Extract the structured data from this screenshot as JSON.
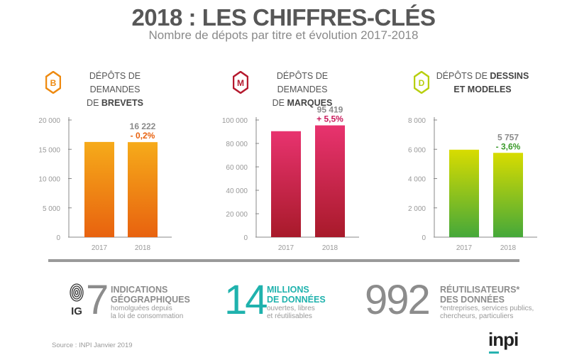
{
  "title": "2018 : LES CHIFFRES-CLÉS",
  "subtitle": "Nombre de dépots par titre et évolution 2017-2018",
  "panels": [
    {
      "letter": "B",
      "line1": "DÉPÔTS DE DEMANDES",
      "line2_pre": "DE ",
      "line2_bold": "BREVETS",
      "color": "#ee8a10"
    },
    {
      "letter": "M",
      "line1": "DÉPÔTS DE DEMANDES",
      "line2_pre": "DE ",
      "line2_bold": "MARQUES",
      "color": "#b5192e"
    },
    {
      "letter": "D",
      "line1_pre": "DÉPÔTS DE ",
      "line1_bold": "DESSINS",
      "line2_bold": "ET MODELES",
      "color": "#b8cf10"
    }
  ],
  "chart_data": [
    {
      "type": "bar",
      "name": "brevets",
      "categories": [
        "2017",
        "2018"
      ],
      "values": [
        16254,
        16222
      ],
      "ylim": [
        0,
        20000
      ],
      "yticks": [
        "0",
        "5 000",
        "10 000",
        "15 000",
        "20 000"
      ],
      "yticks_values": [
        0,
        5000,
        10000,
        15000,
        20000
      ],
      "value_label": "16 222",
      "change_label": "- 0,2%",
      "colors": [
        "#f6ab1a",
        "#e8620f"
      ],
      "change_color": "#e8620f"
    },
    {
      "type": "bar",
      "name": "marques",
      "categories": [
        "2017",
        "2018"
      ],
      "values": [
        90444,
        95419
      ],
      "ylim": [
        0,
        100000
      ],
      "yticks": [
        "0",
        "20 000",
        "40 000",
        "60 000",
        "80 000",
        "100 000"
      ],
      "yticks_values": [
        0,
        20000,
        40000,
        60000,
        80000,
        100000
      ],
      "value_label": "95 419",
      "change_label": "+ 5,5%",
      "colors": [
        "#e8336f",
        "#a81a2a"
      ],
      "change_color": "#c8195a"
    },
    {
      "type": "bar",
      "name": "dessins",
      "categories": [
        "2017",
        "2018"
      ],
      "values": [
        5972,
        5757
      ],
      "ylim": [
        0,
        8000
      ],
      "yticks": [
        "0",
        "2 000",
        "4 000",
        "6 000",
        "8 000"
      ],
      "yticks_values": [
        0,
        2000,
        4000,
        6000,
        8000
      ],
      "value_label": "5 757",
      "change_label": "- 3,6%",
      "colors": [
        "#d8dc00",
        "#45a83a"
      ],
      "change_color": "#3a9a2a"
    }
  ],
  "stats": {
    "ig": {
      "icon_label": "IG",
      "number": "7",
      "bold1": "INDICATIONS",
      "bold2": "GÉOGRAPHIQUES",
      "small1": "homolguées depuis",
      "small2": "la loi de consommation"
    },
    "data": {
      "number": "14",
      "bold1": "MILLIONS",
      "bold2": "DE DONNÉES",
      "small1": "ouvertes, libres",
      "small2": "et réutilisables"
    },
    "users": {
      "number": "992",
      "bold1": "RÉUTILISATEURS*",
      "bold2": "DES DONNÉES",
      "small1": "*entreprises, services publics,",
      "small2": "chercheurs, particuliers"
    }
  },
  "source": "Source : INPI Janvier 2019",
  "logo": "inpi"
}
